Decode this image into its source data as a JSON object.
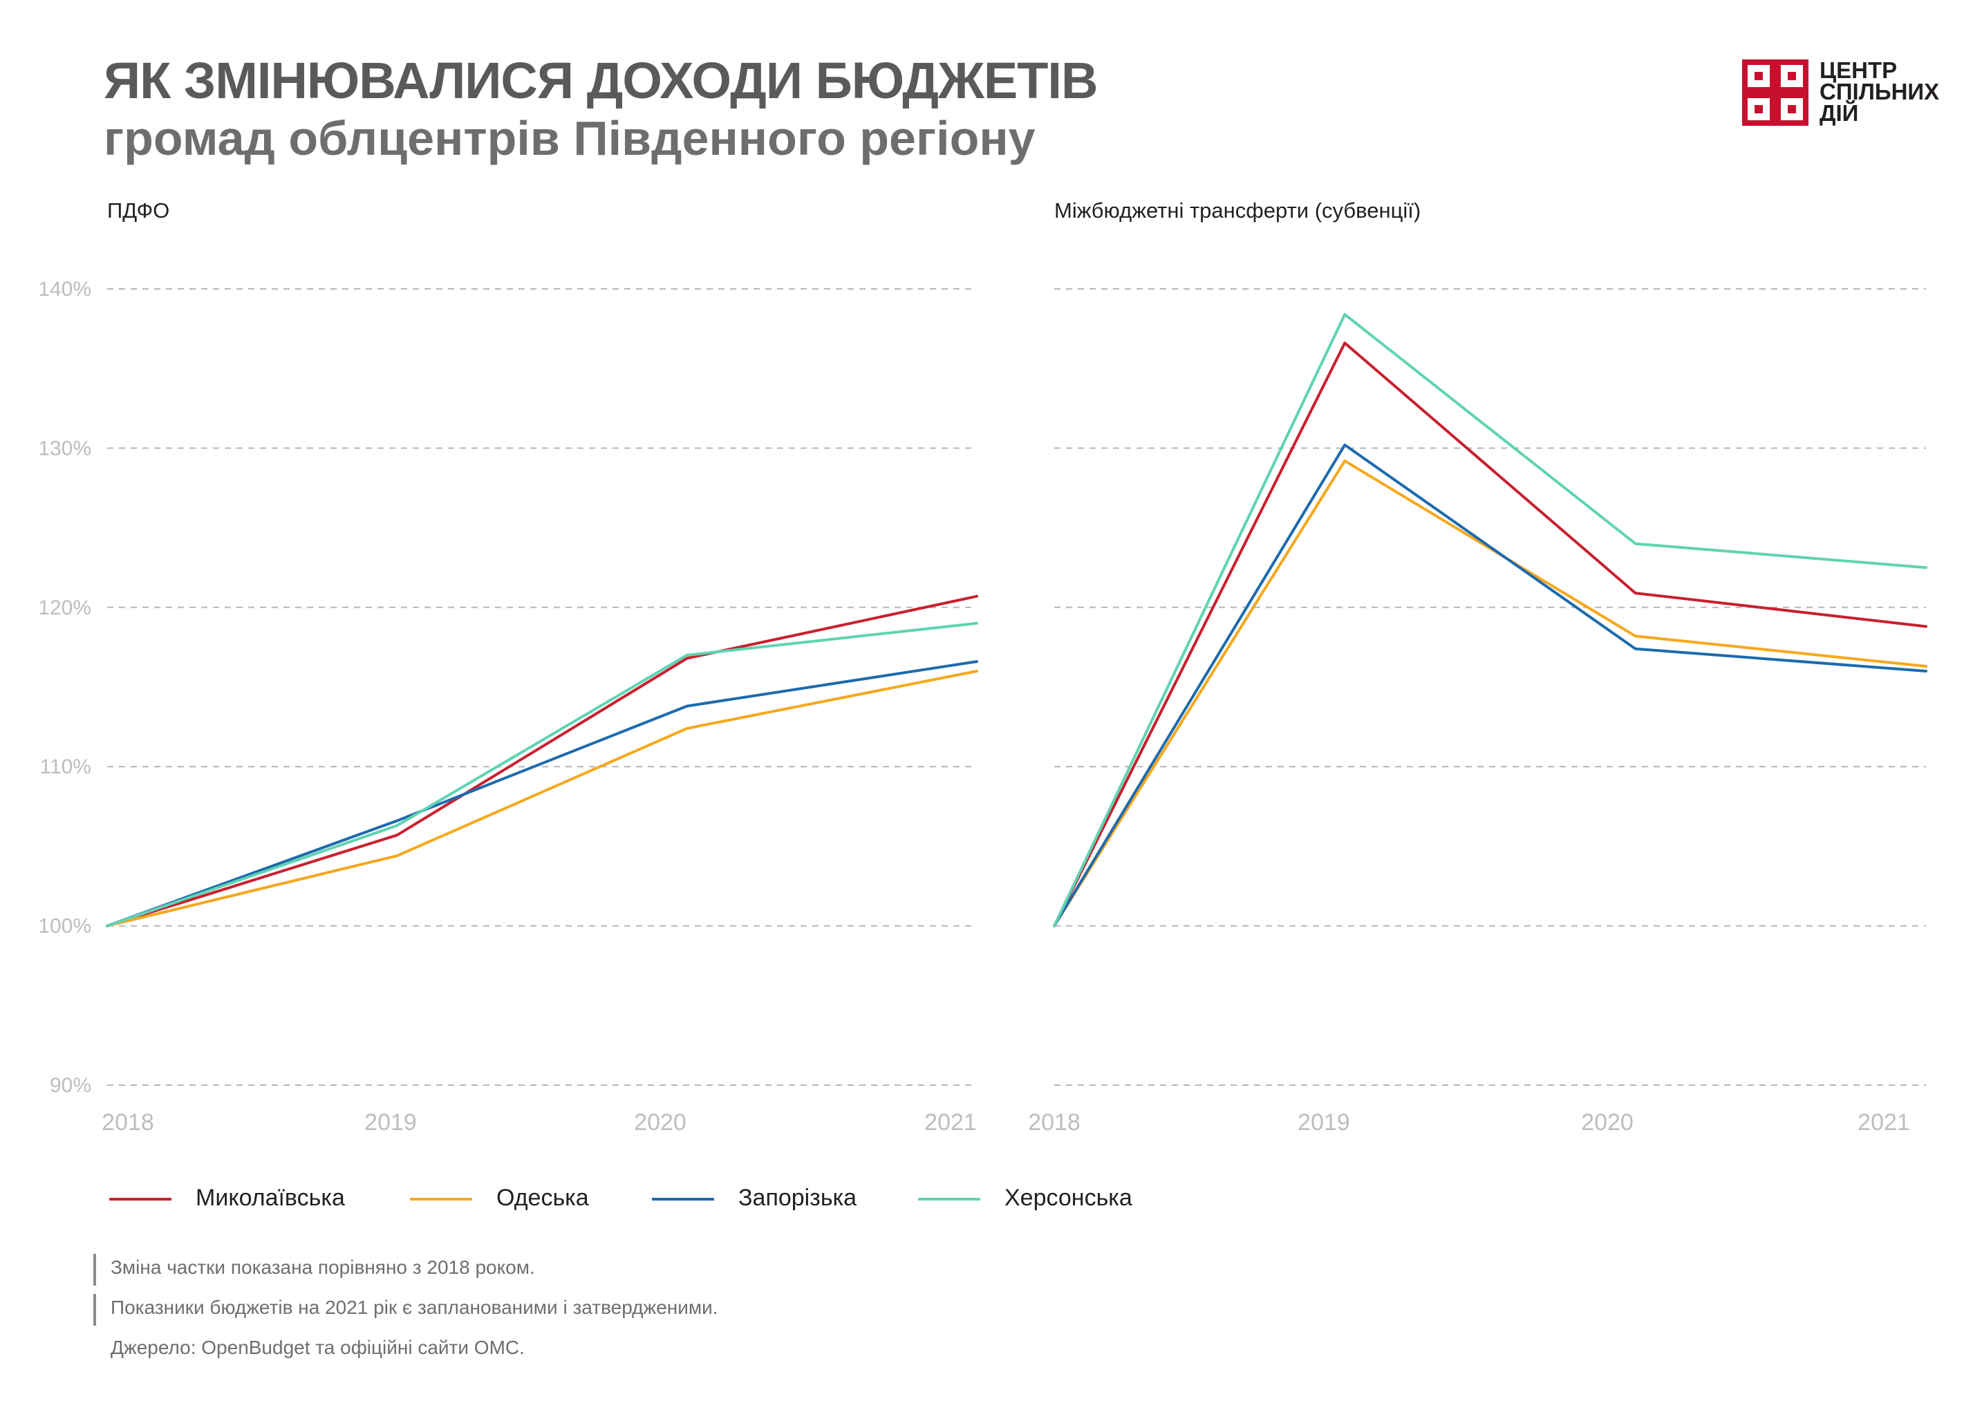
{
  "header": {
    "title": "ЯК ЗМІНЮВАЛИСЯ ДОХОДИ БЮДЖЕТІВ",
    "subtitle": "громад облцентрів Південного регіону"
  },
  "logo": {
    "lines": [
      "ЦЕНТР",
      "СПІЛЬНИХ",
      "ДІЙ"
    ],
    "mark_color": "#c8102e",
    "icon": "logo-mark-icon"
  },
  "chart_data": [
    {
      "type": "line",
      "title": "ПДФО",
      "x": [
        "2018",
        "2019",
        "2020",
        "2021"
      ],
      "y_ticks": [
        "90%",
        "100%",
        "110%",
        "120%",
        "130%",
        "140%"
      ],
      "ylim": [
        90,
        140
      ],
      "grid": true,
      "series": [
        {
          "name": "Миколаївська",
          "color": "#c8202f",
          "values": [
            100,
            105.7,
            116.8,
            120.7
          ]
        },
        {
          "name": "Одеська",
          "color": "#f5a81c",
          "values": [
            100,
            104.4,
            112.4,
            116.0
          ]
        },
        {
          "name": "Запорізька",
          "color": "#1d6aad",
          "values": [
            100,
            106.6,
            113.8,
            116.6
          ]
        },
        {
          "name": "Херсонська",
          "color": "#5fd3b3",
          "values": [
            100,
            106.3,
            117.0,
            119.0
          ]
        }
      ]
    },
    {
      "type": "line",
      "title": "Міжбюджетні трансферти (субвенції)",
      "x": [
        "2018",
        "2019",
        "2020",
        "2021"
      ],
      "y_ticks": [],
      "ylim": [
        90,
        140
      ],
      "grid": true,
      "series": [
        {
          "name": "Миколаївська",
          "color": "#c8202f",
          "values": [
            100,
            136.6,
            120.9,
            118.8
          ]
        },
        {
          "name": "Одеська",
          "color": "#f5a81c",
          "values": [
            100,
            129.2,
            118.2,
            116.3
          ]
        },
        {
          "name": "Запорізька",
          "color": "#1d6aad",
          "values": [
            100,
            130.2,
            117.4,
            116.0
          ]
        },
        {
          "name": "Херсонська",
          "color": "#5fd3b3",
          "values": [
            100,
            138.4,
            124.0,
            122.5
          ]
        }
      ]
    }
  ],
  "legend": [
    {
      "label": "Миколаївська",
      "color": "#c8202f"
    },
    {
      "label": "Одеська",
      "color": "#f5a81c"
    },
    {
      "label": "Запорізька",
      "color": "#1d6aad"
    },
    {
      "label": "Херсонська",
      "color": "#5fd3b3"
    }
  ],
  "notes": [
    {
      "text": "Зміна частки показана порівняно з 2018 роком.",
      "bar": true
    },
    {
      "text": "Показники бюджетів на 2021 рік є запланованими і затвердженими.",
      "bar": true
    },
    {
      "text": "Джерело: OpenBudget та офіційні сайти ОМС.",
      "bar": false
    }
  ]
}
